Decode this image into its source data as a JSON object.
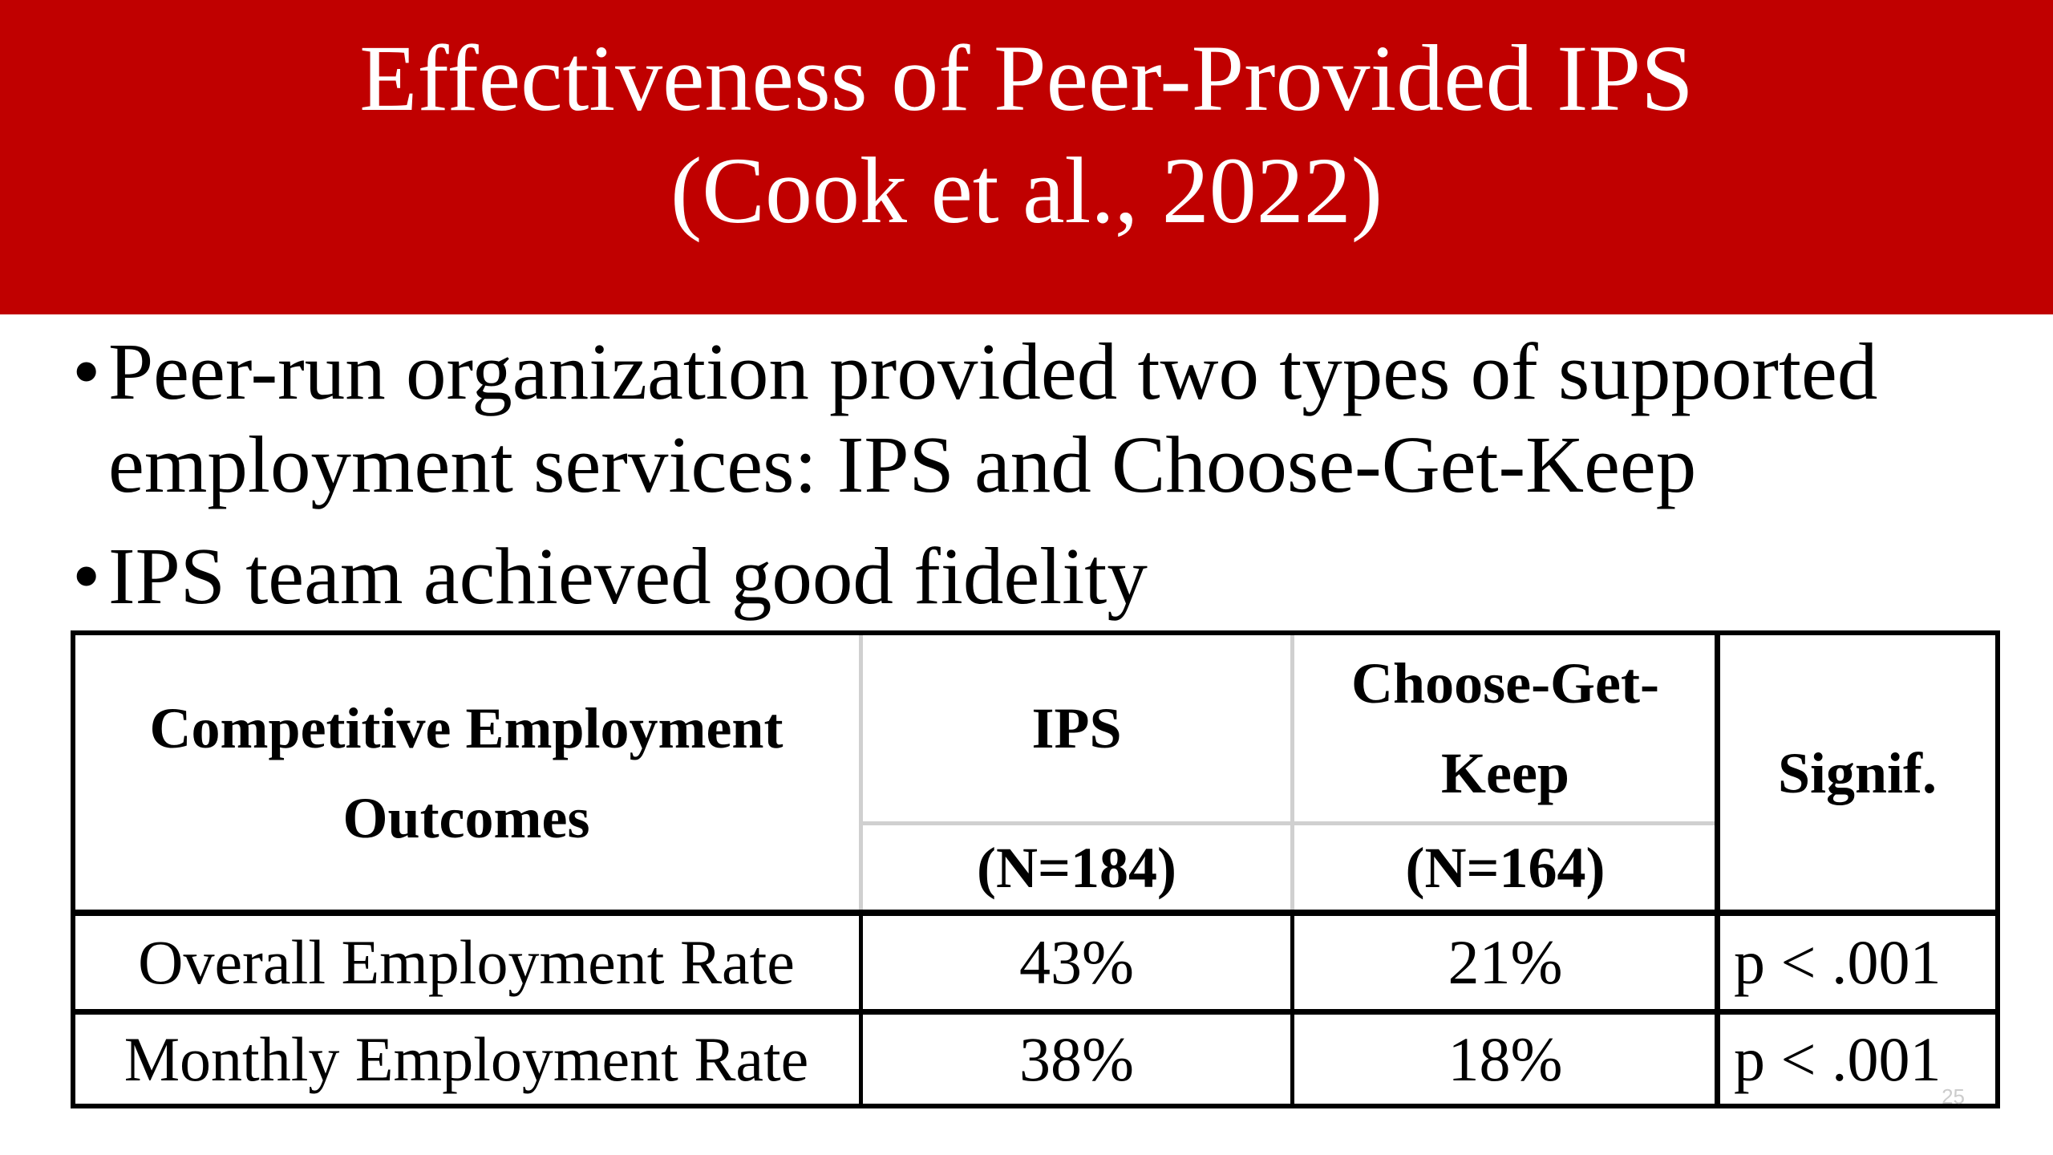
{
  "header": {
    "title": [
      "Effectiveness of Peer-Provided IPS",
      "(Cook et al., 2022)"
    ]
  },
  "bullets": [
    "Peer-run organization provided two types of supported employment services:  IPS and Choose-Get-Keep",
    "IPS team achieved good fidelity"
  ],
  "table": {
    "columns": [
      {
        "label": "Competitive Employment Outcomes"
      },
      {
        "label": "IPS",
        "n": "(N=184)"
      },
      {
        "label": "Choose-Get-Keep",
        "n": "(N=164)"
      },
      {
        "label": "Signif."
      }
    ],
    "rows": [
      [
        "Overall Employment Rate",
        "43%",
        "21%",
        "p < .001"
      ],
      [
        "Monthly Employment Rate",
        "38%",
        "18%",
        "p < .001"
      ]
    ]
  },
  "slide_number": "25"
}
